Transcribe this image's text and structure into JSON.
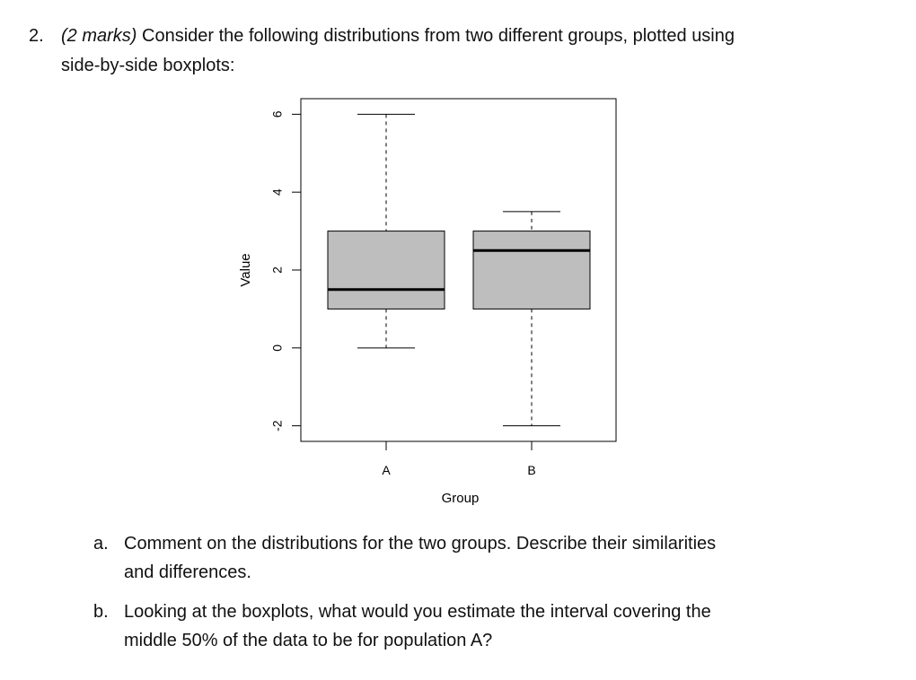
{
  "question": {
    "number": "2.",
    "marks": "(2 marks)",
    "text_line1": " Consider the following distributions from two different groups, plotted using",
    "text_line2": "side-by-side boxplots:"
  },
  "chart_data": {
    "type": "boxplot",
    "xlabel": "Group",
    "ylabel": "Value",
    "ylim": [
      -2.4,
      6.4
    ],
    "yticks": [
      -2,
      0,
      2,
      4,
      6
    ],
    "ytick_labels": [
      "-2",
      "0",
      "2",
      "4",
      "6"
    ],
    "categories": [
      "A",
      "B"
    ],
    "boxes": [
      {
        "group": "A",
        "min": 0,
        "q1": 1,
        "median": 1.5,
        "q3": 3,
        "max": 6
      },
      {
        "group": "B",
        "min": -2,
        "q1": 1,
        "median": 2.5,
        "q3": 3,
        "max": 3.5
      }
    ],
    "box_fill": "#bebebe",
    "frame": true
  },
  "subquestions": [
    {
      "letter": "a.",
      "line1": "Comment on the distributions for the two groups. Describe their similarities",
      "line2": "and differences."
    },
    {
      "letter": "b.",
      "line1": "Looking at the boxplots, what would you estimate the interval covering the",
      "line2": "middle 50% of the data to be for population A?"
    }
  ]
}
